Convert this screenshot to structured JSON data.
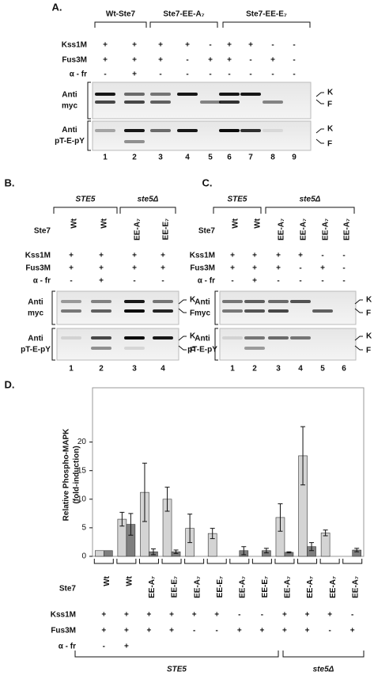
{
  "panel_a": {
    "label": "A.",
    "groups": [
      "Wt-Ste7",
      "Ste7-EE-A₇",
      "Ste7-EE-E₇"
    ],
    "rows": [
      {
        "label": "Kss1M",
        "cells": [
          "+",
          "+",
          "+",
          "+",
          "-",
          "+",
          "+",
          "-",
          "-"
        ]
      },
      {
        "label": "Fus3M",
        "cells": [
          "+",
          "+",
          "+",
          "-",
          "+",
          "+",
          "-",
          "+",
          "-"
        ]
      },
      {
        "label": "α - fr",
        "cells": [
          "-",
          "+",
          "-",
          "-",
          "-",
          "-",
          "-",
          "-",
          "-"
        ]
      }
    ],
    "blots": [
      {
        "label": [
          "Anti",
          "myc"
        ],
        "markers": [
          "K",
          "F"
        ]
      },
      {
        "label": [
          "Anti",
          "pT-E-pY"
        ],
        "markers": [
          "K",
          "F"
        ]
      }
    ],
    "lanes": [
      1,
      2,
      3,
      4,
      5,
      6,
      7,
      8,
      9
    ]
  },
  "panel_b": {
    "label": "B.",
    "groups": [
      "STE5",
      "ste5Δ"
    ],
    "ste7_label": "Ste7",
    "ste7": [
      "Wt",
      "Wt",
      "EE-A₇",
      "EE-E₇"
    ],
    "rows": [
      {
        "label": "Kss1M",
        "cells": [
          "+",
          "+",
          "+",
          "+"
        ]
      },
      {
        "label": "Fus3M",
        "cells": [
          "+",
          "+",
          "+",
          "+"
        ]
      },
      {
        "label": "α - fr",
        "cells": [
          "-",
          "+",
          "-",
          "-"
        ]
      }
    ],
    "blots": [
      {
        "label": [
          "Anti",
          "myc"
        ],
        "markers": [
          "K",
          "F"
        ]
      },
      {
        "label": [
          "Anti",
          "pT-E-pY"
        ],
        "markers": [
          "K",
          "F"
        ]
      }
    ],
    "lanes": [
      1,
      2,
      3,
      4
    ]
  },
  "panel_c": {
    "label": "C.",
    "groups": [
      "STE5",
      "ste5Δ"
    ],
    "ste7_label": "Ste7",
    "ste7": [
      "Wt",
      "Wt",
      "EE-A₇",
      "EE-A₇",
      "EE-A₇",
      "EE-A₇"
    ],
    "rows": [
      {
        "label": "Kss1M",
        "cells": [
          "+",
          "+",
          "+",
          "+",
          "-",
          "-"
        ]
      },
      {
        "label": "Fus3M",
        "cells": [
          "+",
          "+",
          "+",
          "-",
          "+",
          "-"
        ]
      },
      {
        "label": "α - fr",
        "cells": [
          "-",
          "+",
          "-",
          "-",
          "-",
          "-"
        ]
      }
    ],
    "blots": [
      {
        "label": [
          "Anti",
          "myc"
        ],
        "markers": [
          "K",
          "F"
        ]
      },
      {
        "label": [
          "Anti",
          "pT-E-pY"
        ],
        "markers": [
          "K",
          "F"
        ]
      }
    ],
    "lanes": [
      1,
      2,
      3,
      4,
      5,
      6
    ]
  },
  "chart_data": {
    "type": "bar",
    "label": "D.",
    "ylabel": [
      "Relative Phospho-MAPK",
      "(fold-induction)"
    ],
    "category_label": "Ste7",
    "categories": [
      "Wt",
      "Wt",
      "EE-A₇",
      "EE-E₇",
      "EE-A₇",
      "EE-E₇",
      "EE-A₇",
      "EE-E₇",
      "EE-A₇",
      "EE-A₇",
      "EE-A₇",
      "EE-A₇"
    ],
    "rows": [
      {
        "label": "Kss1M",
        "cells": [
          "+",
          "+",
          "+",
          "+",
          "+",
          "+",
          "-",
          "-",
          "+",
          "+",
          "+",
          "-"
        ]
      },
      {
        "label": "Fus3M",
        "cells": [
          "+",
          "+",
          "+",
          "+",
          "-",
          "-",
          "+",
          "+",
          "+",
          "+",
          "-",
          "+"
        ]
      },
      {
        "label": "α - fr",
        "cells": [
          "-",
          "+"
        ]
      }
    ],
    "groups": [
      "STE5",
      "ste5Δ"
    ],
    "series": [
      {
        "color": "#d4d4d4",
        "values": [
          1.0,
          6.5,
          11.2,
          10.0,
          4.9,
          4.0,
          null,
          null,
          6.8,
          17.6,
          4.1,
          null
        ],
        "errors": [
          null,
          1.2,
          5.1,
          2.1,
          2.5,
          0.9,
          null,
          null,
          2.4,
          5.1,
          0.5,
          null
        ]
      },
      {
        "color": "#7f7f7f",
        "values": [
          1.0,
          5.6,
          0.8,
          0.8,
          null,
          null,
          1.0,
          1.0,
          0.7,
          1.7,
          null,
          1.1
        ],
        "errors": [
          null,
          1.9,
          0.5,
          0.3,
          null,
          null,
          0.7,
          0.4,
          0.1,
          0.7,
          null,
          0.3
        ]
      }
    ],
    "ylim": [
      0,
      29.5
    ],
    "yticks": [
      0,
      5,
      10,
      15,
      20
    ],
    "grid": false
  }
}
